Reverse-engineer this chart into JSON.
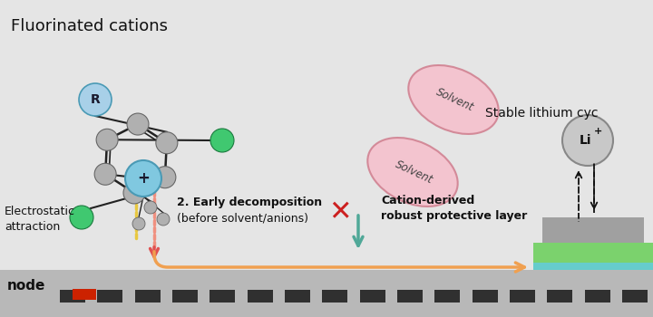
{
  "bg_color": "#e5e5e5",
  "title_text": "Fluorinated cations",
  "stable_text": "Stable lithium cyc",
  "anode_label": "node",
  "early_decomp_line1": "2. Early decomposition",
  "early_decomp_line2": "(before solvent/anions)",
  "electrostatic_text": "Electrostatic\nattraction",
  "cation_derived_text": "Cation-derived\nrobust protective layer",
  "solvent_color": "#f5c0cc",
  "solvent_edge_color": "#d08090",
  "colors": {
    "orange_arrow": "#f0a050",
    "red_arrow": "#e05050",
    "teal_arrow": "#50a898",
    "molecule_ring": "#b0b0b0",
    "molecule_center": "#80c8e0",
    "molecule_r": "#a8d0e8",
    "fluorine": "#40c870",
    "red_x": "#cc2020",
    "green_layer": "#70d060",
    "cyan_layer": "#50c8c8",
    "gray_layer": "#a0a0a0",
    "anode_bg": "#b8b8b8",
    "li_circle": "#c8c8c8",
    "red_rect": "#cc2200",
    "dash_color": "#303030",
    "dashed_red": "#f09080",
    "dashed_yellow": "#e8c840"
  }
}
